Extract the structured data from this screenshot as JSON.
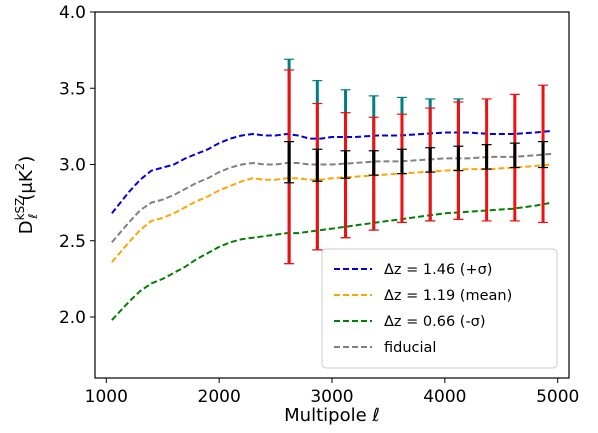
{
  "chart_data": {
    "type": "line",
    "xlabel": "Multipole ℓ",
    "ylabel_parts": {
      "base": "D",
      "sub": "ℓ",
      "sup": "kSZ",
      "unit": "(μK",
      "unit_sup": "2",
      "unit_close": ")"
    },
    "xlim": [
      900,
      5100
    ],
    "ylim": [
      1.6,
      4.0
    ],
    "xticks": [
      1000,
      2000,
      3000,
      4000,
      5000
    ],
    "yticks": [
      2.0,
      2.5,
      3.0,
      3.5,
      4.0
    ],
    "ytick_labels": [
      "2.0",
      "2.5",
      "3.0",
      "3.5",
      "4.0"
    ],
    "grid": false,
    "legend_position": "lower-right",
    "series": [
      {
        "name": "Δz = 1.46 (+σ)",
        "color": "#0000dd",
        "style": "dashed",
        "x": [
          1050,
          1200,
          1300,
          1400,
          1500,
          1600,
          1700,
          1800,
          1900,
          2000,
          2100,
          2200,
          2300,
          2400,
          2500,
          2600,
          2700,
          2800,
          2900,
          3000,
          3200,
          3400,
          3600,
          3800,
          4000,
          4200,
          4400,
          4600,
          4800,
          4950
        ],
        "values": [
          2.68,
          2.82,
          2.9,
          2.96,
          2.98,
          3.0,
          3.04,
          3.07,
          3.1,
          3.14,
          3.17,
          3.19,
          3.2,
          3.19,
          3.19,
          3.2,
          3.19,
          3.17,
          3.17,
          3.18,
          3.18,
          3.19,
          3.19,
          3.2,
          3.21,
          3.21,
          3.2,
          3.2,
          3.21,
          3.22
        ]
      },
      {
        "name": "Δz = 1.19 (mean)",
        "color": "#ffa500",
        "style": "dashed",
        "x": [
          1050,
          1200,
          1300,
          1400,
          1500,
          1600,
          1700,
          1800,
          1900,
          2000,
          2100,
          2200,
          2300,
          2400,
          2500,
          2600,
          2700,
          2800,
          2900,
          3000,
          3200,
          3400,
          3600,
          3800,
          4000,
          4200,
          4400,
          4600,
          4800,
          4950
        ],
        "values": [
          2.36,
          2.49,
          2.57,
          2.63,
          2.65,
          2.68,
          2.72,
          2.76,
          2.79,
          2.83,
          2.86,
          2.89,
          2.91,
          2.9,
          2.9,
          2.91,
          2.91,
          2.9,
          2.9,
          2.91,
          2.92,
          2.93,
          2.94,
          2.95,
          2.96,
          2.97,
          2.97,
          2.98,
          2.99,
          3.0
        ]
      },
      {
        "name": "Δz = 0.66 (-σ)",
        "color": "#008000",
        "style": "dashed",
        "x": [
          1050,
          1200,
          1300,
          1400,
          1500,
          1600,
          1700,
          1800,
          1900,
          2000,
          2100,
          2200,
          2300,
          2400,
          2500,
          2600,
          2700,
          2800,
          2900,
          3000,
          3200,
          3400,
          3600,
          3800,
          4000,
          4200,
          4400,
          4600,
          4800,
          4950
        ],
        "values": [
          1.98,
          2.1,
          2.17,
          2.22,
          2.25,
          2.29,
          2.33,
          2.38,
          2.42,
          2.46,
          2.49,
          2.51,
          2.52,
          2.53,
          2.54,
          2.55,
          2.55,
          2.56,
          2.57,
          2.58,
          2.6,
          2.62,
          2.64,
          2.66,
          2.68,
          2.69,
          2.7,
          2.71,
          2.73,
          2.75
        ]
      },
      {
        "name": "fiducial",
        "color": "#808080",
        "style": "dashed",
        "x": [
          1050,
          1200,
          1300,
          1400,
          1500,
          1600,
          1700,
          1800,
          1900,
          2000,
          2100,
          2200,
          2300,
          2400,
          2500,
          2600,
          2700,
          2800,
          2900,
          3000,
          3200,
          3400,
          3600,
          3800,
          4000,
          4200,
          4400,
          4600,
          4800,
          4950
        ],
        "values": [
          2.49,
          2.62,
          2.7,
          2.75,
          2.77,
          2.8,
          2.84,
          2.88,
          2.91,
          2.95,
          2.98,
          3.0,
          3.01,
          3.0,
          3.0,
          3.01,
          3.01,
          3.0,
          3.0,
          3.0,
          3.01,
          3.02,
          3.02,
          3.03,
          3.04,
          3.04,
          3.05,
          3.05,
          3.06,
          3.07
        ]
      }
    ],
    "error_bars": [
      {
        "color": "#008080",
        "points": [
          {
            "x": 2620,
            "low": 2.35,
            "high": 3.69
          },
          {
            "x": 2870,
            "low": 2.44,
            "high": 3.55
          },
          {
            "x": 3120,
            "low": 2.52,
            "high": 3.49
          },
          {
            "x": 3370,
            "low": 2.57,
            "high": 3.45
          },
          {
            "x": 3620,
            "low": 2.62,
            "high": 3.44
          },
          {
            "x": 3870,
            "low": 2.63,
            "high": 3.43
          },
          {
            "x": 4120,
            "low": 2.64,
            "high": 3.43
          }
        ]
      },
      {
        "color": "#ee1111",
        "points": [
          {
            "x": 2620,
            "low": 2.35,
            "high": 3.62
          },
          {
            "x": 2870,
            "low": 2.44,
            "high": 3.4
          },
          {
            "x": 3120,
            "low": 2.52,
            "high": 3.34
          },
          {
            "x": 3370,
            "low": 2.57,
            "high": 3.31
          },
          {
            "x": 3620,
            "low": 2.62,
            "high": 3.33
          },
          {
            "x": 3870,
            "low": 2.63,
            "high": 3.37
          },
          {
            "x": 4120,
            "low": 2.64,
            "high": 3.41
          },
          {
            "x": 4370,
            "low": 2.63,
            "high": 3.43
          },
          {
            "x": 4620,
            "low": 2.63,
            "high": 3.46
          },
          {
            "x": 4870,
            "low": 2.62,
            "high": 3.52
          }
        ]
      },
      {
        "color": "#000000",
        "points": [
          {
            "x": 2620,
            "low": 2.88,
            "high": 3.15
          },
          {
            "x": 2870,
            "low": 2.89,
            "high": 3.1
          },
          {
            "x": 3120,
            "low": 2.91,
            "high": 3.09
          },
          {
            "x": 3370,
            "low": 2.93,
            "high": 3.09
          },
          {
            "x": 3620,
            "low": 2.94,
            "high": 3.1
          },
          {
            "x": 3870,
            "low": 2.95,
            "high": 3.11
          },
          {
            "x": 4120,
            "low": 2.96,
            "high": 3.12
          },
          {
            "x": 4370,
            "low": 2.97,
            "high": 3.13
          },
          {
            "x": 4620,
            "low": 2.98,
            "high": 3.14
          },
          {
            "x": 4870,
            "low": 2.98,
            "high": 3.15
          }
        ]
      }
    ]
  }
}
